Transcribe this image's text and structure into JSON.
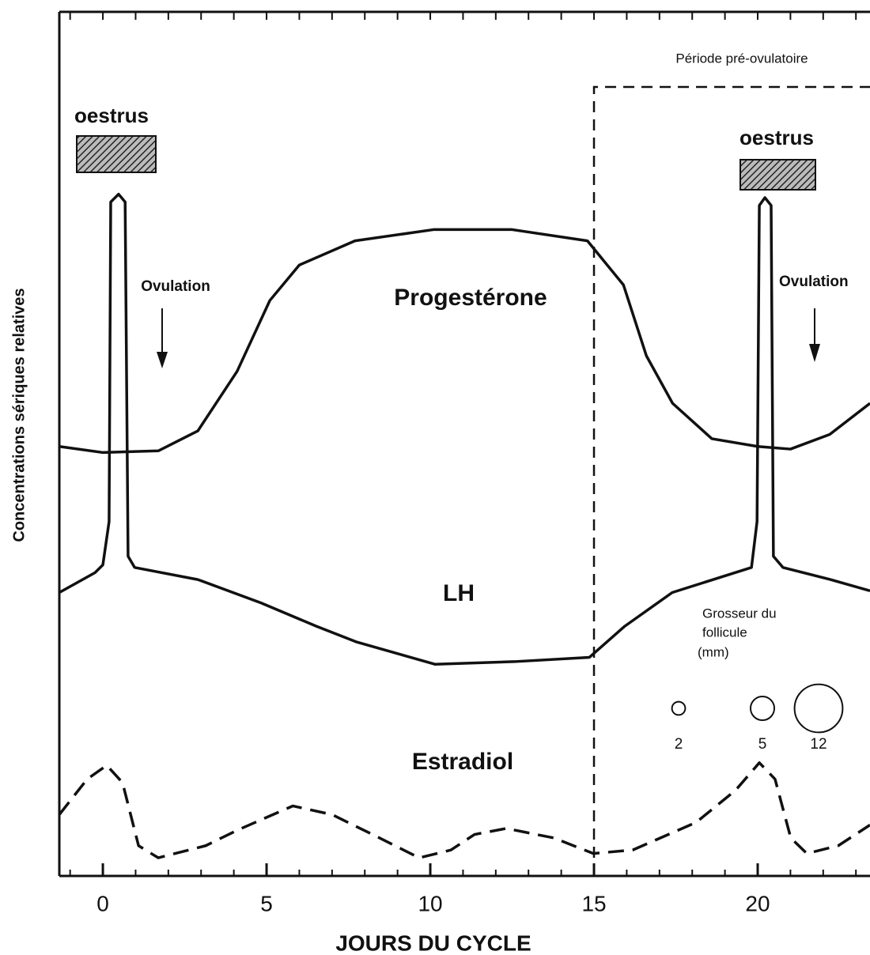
{
  "chart_data": {
    "type": "line",
    "xlabel": "JOURS DU CYCLE",
    "ylabel": "Concentrations sériques relatives",
    "xlim": [
      -1.33,
      23.43
    ],
    "xticks": [
      0,
      5,
      10,
      15,
      20
    ],
    "ylim": [
      0,
      100
    ],
    "series": [
      {
        "name": "Progestérone",
        "color": "#111111",
        "x": [
          -1.33,
          0,
          1.7,
          2.9,
          4.1,
          5.1,
          6.0,
          7.7,
          10.1,
          12.5,
          14.8,
          15.9,
          16.6,
          17.4,
          18.6,
          20.0,
          21.0,
          22.2,
          23.43
        ],
        "values": [
          49.7,
          49.0,
          49.2,
          51.5,
          58.4,
          66.6,
          70.7,
          73.5,
          74.8,
          74.8,
          73.5,
          68.4,
          60.2,
          54.7,
          50.6,
          49.7,
          49.4,
          51.1,
          54.7
        ]
      },
      {
        "name": "LH",
        "color": "#111111",
        "x": [
          -1.33,
          -0.24,
          0,
          0.19,
          0.24,
          0.48,
          0.68,
          0.77,
          0.97,
          2.9,
          4.83,
          6.52,
          7.73,
          10.14,
          12.56,
          14.86,
          15.94,
          17.39,
          19.81,
          19.98,
          20.05,
          20.22,
          20.41,
          20.48,
          20.77,
          22.22,
          23.43
        ],
        "values": [
          32.8,
          35.1,
          36.0,
          41.0,
          78.0,
          78.9,
          78.0,
          37.0,
          35.7,
          34.3,
          31.6,
          28.9,
          27.1,
          24.5,
          24.8,
          25.3,
          28.9,
          32.8,
          35.7,
          41.0,
          77.6,
          78.5,
          77.6,
          37.0,
          35.7,
          34.3,
          33.0
        ]
      },
      {
        "name": "Estradiol",
        "color": "#111111",
        "dashed": true,
        "x": [
          -1.33,
          -0.48,
          0.12,
          0.6,
          1.09,
          1.69,
          3.14,
          4.11,
          5.8,
          7.0,
          8.45,
          9.66,
          10.63,
          11.35,
          12.32,
          13.77,
          14.98,
          16.18,
          18.12,
          19.32,
          20.05,
          20.53,
          21.01,
          21.5,
          22.46,
          23.43
        ],
        "values": [
          7.1,
          11.2,
          12.8,
          10.8,
          3.5,
          2.1,
          3.5,
          5.3,
          8.1,
          7.1,
          4.4,
          2.1,
          3.0,
          4.8,
          5.5,
          4.4,
          2.6,
          3.0,
          6.2,
          9.9,
          13.1,
          11.2,
          4.4,
          2.6,
          3.5,
          5.9
        ]
      }
    ],
    "period": {
      "text": "Période pré-ovulatoire",
      "start": 15
    },
    "annotations": [
      "oestrus",
      "oestrus",
      "Ovulation",
      "Ovulation"
    ],
    "follicle": {
      "title": [
        "Grosseur du",
        "follicule",
        "(mm)"
      ],
      "sizes": [
        2,
        5,
        12
      ]
    }
  }
}
